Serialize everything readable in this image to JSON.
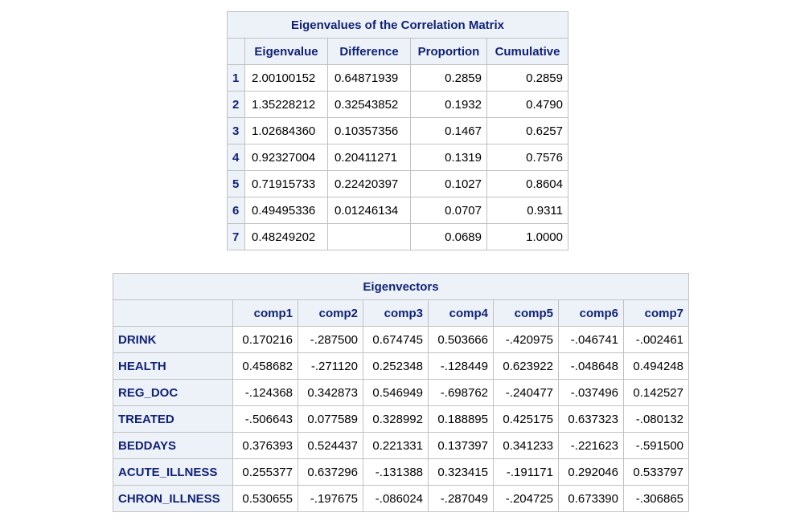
{
  "eigenvalues": {
    "title": "Eigenvalues of the Correlation Matrix",
    "columns": [
      "Eigenvalue",
      "Difference",
      "Proportion",
      "Cumulative"
    ],
    "rows": [
      {
        "id": "1",
        "eigenvalue": "2.00100152",
        "difference": "0.64871939",
        "proportion": "0.2859",
        "cumulative": "0.2859"
      },
      {
        "id": "2",
        "eigenvalue": "1.35228212",
        "difference": "0.32543852",
        "proportion": "0.1932",
        "cumulative": "0.4790"
      },
      {
        "id": "3",
        "eigenvalue": "1.02684360",
        "difference": "0.10357356",
        "proportion": "0.1467",
        "cumulative": "0.6257"
      },
      {
        "id": "4",
        "eigenvalue": "0.92327004",
        "difference": "0.20411271",
        "proportion": "0.1319",
        "cumulative": "0.7576"
      },
      {
        "id": "5",
        "eigenvalue": "0.71915733",
        "difference": "0.22420397",
        "proportion": "0.1027",
        "cumulative": "0.8604"
      },
      {
        "id": "6",
        "eigenvalue": "0.49495336",
        "difference": "0.01246134",
        "proportion": "0.0707",
        "cumulative": "0.9311"
      },
      {
        "id": "7",
        "eigenvalue": "0.48249202",
        "difference": "",
        "proportion": "0.0689",
        "cumulative": "1.0000"
      }
    ]
  },
  "eigenvectors": {
    "title": "Eigenvectors",
    "columns": [
      "comp1",
      "comp2",
      "comp3",
      "comp4",
      "comp5",
      "comp6",
      "comp7"
    ],
    "rows": [
      {
        "name": "DRINK",
        "values": [
          "0.170216",
          "-.287500",
          "0.674745",
          "0.503666",
          "-.420975",
          "-.046741",
          "-.002461"
        ]
      },
      {
        "name": "HEALTH",
        "values": [
          "0.458682",
          "-.271120",
          "0.252348",
          "-.128449",
          "0.623922",
          "-.048648",
          "0.494248"
        ]
      },
      {
        "name": "REG_DOC",
        "values": [
          "-.124368",
          "0.342873",
          "0.546949",
          "-.698762",
          "-.240477",
          "-.037496",
          "0.142527"
        ]
      },
      {
        "name": "TREATED",
        "values": [
          "-.506643",
          "0.077589",
          "0.328992",
          "0.188895",
          "0.425175",
          "0.637323",
          "-.080132"
        ]
      },
      {
        "name": "BEDDAYS",
        "values": [
          "0.376393",
          "0.524437",
          "0.221331",
          "0.137397",
          "0.341233",
          "-.221623",
          "-.591500"
        ]
      },
      {
        "name": "ACUTE_ILLNESS",
        "values": [
          "0.255377",
          "0.637296",
          "-.131388",
          "0.323415",
          "-.191171",
          "0.292046",
          "0.533797"
        ]
      },
      {
        "name": "CHRON_ILLNESS",
        "values": [
          "0.530655",
          "-.197675",
          "-.086024",
          "-.287049",
          "-.204725",
          "0.673390",
          "-.306865"
        ]
      }
    ]
  },
  "colors": {
    "header_bg": "#edf2f9",
    "header_text": "#112277",
    "border": "#c1c1c1"
  }
}
